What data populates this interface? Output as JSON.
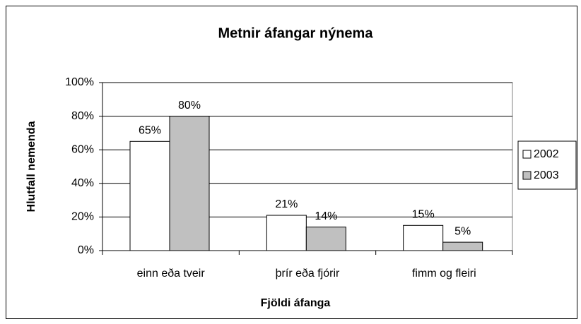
{
  "chart_data": {
    "type": "bar",
    "title": "Metnir áfangar nýnema",
    "x_label": "Fjöldi áfanga",
    "y_label": "Hlutfall nemenda",
    "categories": [
      "einn eða tveir",
      "þrír eða fjórir",
      "fimm og fleiri"
    ],
    "series": [
      {
        "name": "2002",
        "color": "#ffffff",
        "values": [
          65,
          21,
          15
        ],
        "value_labels": [
          "65%",
          "21%",
          "15%"
        ]
      },
      {
        "name": "2003",
        "color": "#c0c0c0",
        "values": [
          80,
          14,
          5
        ],
        "value_labels": [
          "80%",
          "14%",
          "5%"
        ]
      }
    ],
    "ylim": [
      0,
      100
    ],
    "yticks": [
      {
        "value": 0,
        "label": "0%"
      },
      {
        "value": 20,
        "label": "20%"
      },
      {
        "value": 40,
        "label": "40%"
      },
      {
        "value": 60,
        "label": "60%"
      },
      {
        "value": 80,
        "label": "80%"
      },
      {
        "value": 100,
        "label": "100%"
      }
    ],
    "grid": true,
    "legend": "right"
  }
}
